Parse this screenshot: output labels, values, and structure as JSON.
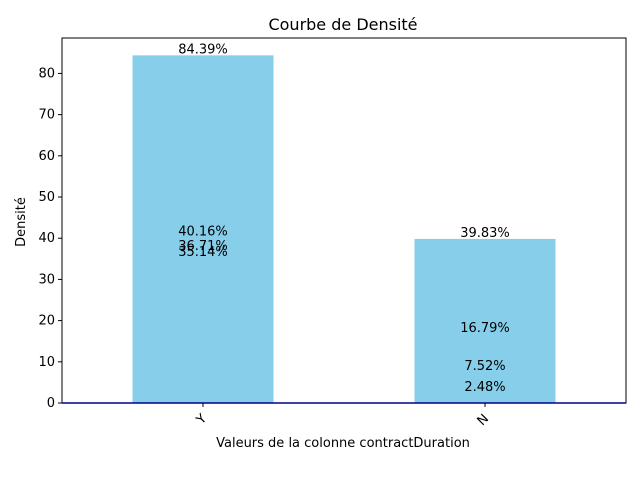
{
  "chart_data": {
    "type": "bar",
    "title": "Courbe de Densité",
    "xlabel": "Valeurs de la colonne contractDuration",
    "ylabel": "Densité",
    "categories": [
      "Y",
      "N"
    ],
    "values": [
      84.39,
      39.83
    ],
    "ylim": [
      0,
      88.6
    ],
    "yticks": [
      0,
      10,
      20,
      30,
      40,
      50,
      60,
      70,
      80
    ],
    "grid": false,
    "bar_color": "#87CEEB",
    "baseline_color": "#00008B",
    "annotations": [
      {
        "category": "Y",
        "text": "84.39%",
        "value": 84.39
      },
      {
        "category": "Y",
        "text": "40.16%",
        "value": 40.16
      },
      {
        "category": "Y",
        "text": "36.71%",
        "value": 36.71
      },
      {
        "category": "Y",
        "text": "35.14%",
        "value": 35.14
      },
      {
        "category": "N",
        "text": "39.83%",
        "value": 39.83
      },
      {
        "category": "N",
        "text": "16.79%",
        "value": 16.79
      },
      {
        "category": "N",
        "text": "7.52%",
        "value": 7.52
      },
      {
        "category": "N",
        "text": "2.48%",
        "value": 2.48
      }
    ]
  }
}
